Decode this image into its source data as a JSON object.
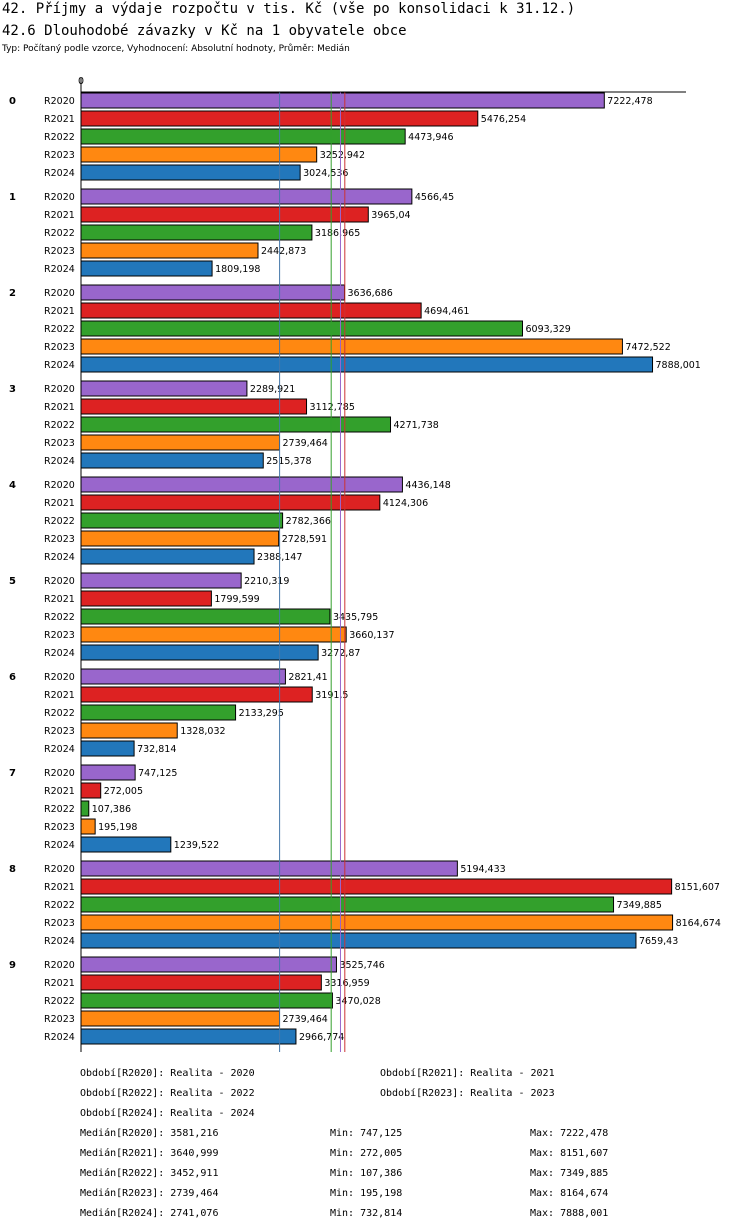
{
  "header": {
    "title1": "42. Příjmy a výdaje rozpočtu v tis. Kč (vše po konsolidaci k 31.12.)",
    "title2": "42.6 Dlouhodobé závazky v Kč na 1 obyvatele obce",
    "subtitle": "Typ: Počítaný podle vzorce, Vyhodnocení: Absolutní hodnoty, Průměr: Medián"
  },
  "chart_data": {
    "type": "bar",
    "orientation": "horizontal",
    "axis_zero_label": "0",
    "xlim": [
      0,
      8350
    ],
    "groups": [
      "0",
      "1",
      "2",
      "3",
      "4",
      "5",
      "6",
      "7",
      "8",
      "9"
    ],
    "series": [
      {
        "name": "R2020",
        "color": "#9966cc",
        "values": [
          7222.478,
          4566.45,
          3636.686,
          2289.921,
          4436.148,
          2210.319,
          2821.41,
          747.125,
          5194.433,
          3525.746
        ],
        "labels": [
          "7222,478",
          "4566,45",
          "3636,686",
          "2289,921",
          "4436,148",
          "2210,319",
          "2821,41",
          "747,125",
          "5194,433",
          "3525,746"
        ]
      },
      {
        "name": "R2021",
        "color": "#dd2222",
        "values": [
          5476.254,
          3965.04,
          4694.461,
          3112.785,
          4124.306,
          1799.599,
          3191.5,
          272.005,
          8151.607,
          3316.959
        ],
        "labels": [
          "5476,254",
          "3965,04",
          "4694,461",
          "3112,785",
          "4124,306",
          "1799,599",
          "3191,5",
          "272,005",
          "8151,607",
          "3316,959"
        ]
      },
      {
        "name": "R2022",
        "color": "#33a02c",
        "values": [
          4473.946,
          3186.965,
          6093.329,
          4271.738,
          2782.366,
          3435.795,
          2133.295,
          107.386,
          7349.885,
          3470.028
        ],
        "labels": [
          "4473,946",
          "3186,965",
          "6093,329",
          "4271,738",
          "2782,366",
          "3435,795",
          "2133,295",
          "107,386",
          "7349,885",
          "3470,028"
        ]
      },
      {
        "name": "R2023",
        "color": "#ff8811",
        "values": [
          3252.942,
          2442.873,
          7472.522,
          2739.464,
          2728.591,
          3660.137,
          1328.032,
          195.198,
          8164.674,
          2739.464
        ],
        "labels": [
          "3252,942",
          "2442,873",
          "7472,522",
          "2739,464",
          "2728,591",
          "3660,137",
          "1328,032",
          "195,198",
          "8164,674",
          "2739,464"
        ]
      },
      {
        "name": "R2024",
        "color": "#2277bb",
        "values": [
          3024.536,
          1809.198,
          7888.001,
          2515.378,
          2388.147,
          3272.87,
          732.814,
          1239.522,
          7659.43,
          2966.774
        ],
        "labels": [
          "3024,536",
          "1809,198",
          "7888,001",
          "2515,378",
          "2388,147",
          "3272,87",
          "732,814",
          "1239,522",
          "7659,43",
          "2966,774"
        ]
      }
    ],
    "reference_lines": [
      {
        "value": 2741.076,
        "color": "#4477aa"
      },
      {
        "value": 3452.911,
        "color": "#33a02c"
      },
      {
        "value": 3581.216,
        "color": "#9966cc"
      },
      {
        "value": 3640.999,
        "color": "#cc3333"
      }
    ]
  },
  "legend": {
    "periods": [
      "Období[R2020]: Realita - 2020",
      "Období[R2021]: Realita - 2021",
      "Období[R2022]: Realita - 2022",
      "Období[R2023]: Realita - 2023",
      "Období[R2024]: Realita - 2024"
    ],
    "stats": [
      {
        "median": "Medián[R2020]: 3581,216",
        "min": "Min: 747,125",
        "max": "Max: 7222,478"
      },
      {
        "median": "Medián[R2021]: 3640,999",
        "min": "Min: 272,005",
        "max": "Max: 8151,607"
      },
      {
        "median": "Medián[R2022]: 3452,911",
        "min": "Min: 107,386",
        "max": "Max: 7349,885"
      },
      {
        "median": "Medián[R2023]: 2739,464",
        "min": "Min: 195,198",
        "max": "Max: 8164,674"
      },
      {
        "median": "Medián[R2024]: 2741,076",
        "min": "Min: 732,814",
        "max": "Max: 7888,001"
      }
    ]
  }
}
